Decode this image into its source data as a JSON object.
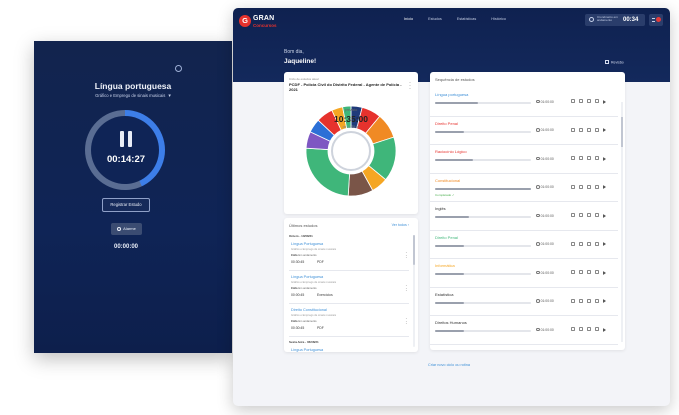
{
  "timer": {
    "subject": "Língua portuguesa",
    "topic": "Gráfico e Emprego de sinais musicais",
    "elapsed": "00:14:27",
    "register_label": "Registrar Estudo",
    "alarm_label": "Alarme",
    "alarm_time": "00:00:00",
    "progress_fraction": 0.43
  },
  "header": {
    "logo_letter": "G",
    "logo_name": "GRAN",
    "logo_sub": "Concursos",
    "nav": [
      "Início",
      "Estudos",
      "Estatísticas",
      "Histórico"
    ],
    "active_nav": 0,
    "top_timer_label": "Cronômetro em andamento",
    "top_timer_time": "00:34",
    "greeting": "Bom dia,",
    "user_name": "Jaqueline!",
    "review_label": "Revisão"
  },
  "cycle": {
    "caption": "Ciclo de estudos atual",
    "title": "PCDF - Polícia Civil do Distrito Federal - Agente de Polícia - 2021",
    "center_label": "previsto",
    "center_time": "10:35:00",
    "center_sub": "de 10:35:00",
    "segments": [
      {
        "color": "#1f3a7a",
        "value": 4
      },
      {
        "color": "#e6322d",
        "value": 7
      },
      {
        "color": "#f08a24",
        "value": 9
      },
      {
        "color": "#3fb67a",
        "value": 16
      },
      {
        "color": "#f5a623",
        "value": 6
      },
      {
        "color": "#7a5548",
        "value": 9
      },
      {
        "color": "#3fb67a",
        "value": 25
      },
      {
        "color": "#7e57c2",
        "value": 6
      },
      {
        "color": "#2c6fd6",
        "value": 5
      },
      {
        "color": "#e6322d",
        "value": 6
      },
      {
        "color": "#f5a623",
        "value": 4
      },
      {
        "color": "#3fb67a",
        "value": 3
      }
    ]
  },
  "recent": {
    "title": "Últimos estudos",
    "see_all": "Ver todos",
    "groups": [
      {
        "date": "Ontem - 10/08/21",
        "items": [
          {
            "subject": "Língua Portuguesa",
            "topic": "Gráfico e Emprego de sinais musicais",
            "tl_label": "Ciclo",
            "tl_value": "Em andamento",
            "time": "00:30:45",
            "type": "PDF"
          },
          {
            "subject": "Língua Portuguesa",
            "topic": "Gráfico e Emprego de sinais musicais",
            "tl_label": "Ciclo",
            "tl_value": "Em andamento",
            "time": "00:00:45",
            "type": "Exercícios"
          },
          {
            "subject": "Direito Constitucional",
            "topic": "Gráfico e Emprego de sinais musicais",
            "tl_label": "Ciclo",
            "tl_value": "Em andamento",
            "time": "00:30:45",
            "type": "PDF"
          }
        ]
      },
      {
        "date": "Sexta-feira - 06/08/21",
        "items": [
          {
            "subject": "Língua Portuguesa",
            "topic": "",
            "tl_label": "",
            "tl_value": "",
            "time": "",
            "type": ""
          }
        ]
      }
    ]
  },
  "sequence": {
    "title": "Sequência de estudos",
    "items": [
      {
        "name": "Língua portuguesa",
        "color": "#3d8fd7",
        "progress": 0.45,
        "time": "01:00:00",
        "done": ""
      },
      {
        "name": "Direito Penal",
        "color": "#e6322d",
        "progress": 0.3,
        "time": "01:00:00",
        "done": ""
      },
      {
        "name": "Raciocínio Lógico",
        "color": "#e6322d",
        "progress": 0.4,
        "time": "01:00:00",
        "done": ""
      },
      {
        "name": "Constitucional",
        "color": "#f08a24",
        "progress": 1.0,
        "time": "01:00:00",
        "done": "Completado ✓"
      },
      {
        "name": "Inglês",
        "color": "#333333",
        "progress": 0.35,
        "time": "01:00:00",
        "done": ""
      },
      {
        "name": "Direito Penal",
        "color": "#3fb67a",
        "progress": 0.3,
        "time": "01:00:00",
        "done": ""
      },
      {
        "name": "Informática",
        "color": "#f5a623",
        "progress": 0.3,
        "time": "01:00:00",
        "done": ""
      },
      {
        "name": "Estatística",
        "color": "#333333",
        "progress": 0.3,
        "time": "01:00:00",
        "done": ""
      },
      {
        "name": "Direitos Humanos",
        "color": "#333333",
        "progress": 0.3,
        "time": "01:00:00",
        "done": ""
      }
    ]
  },
  "create_link": "Criar novo ciclo ou rotina"
}
